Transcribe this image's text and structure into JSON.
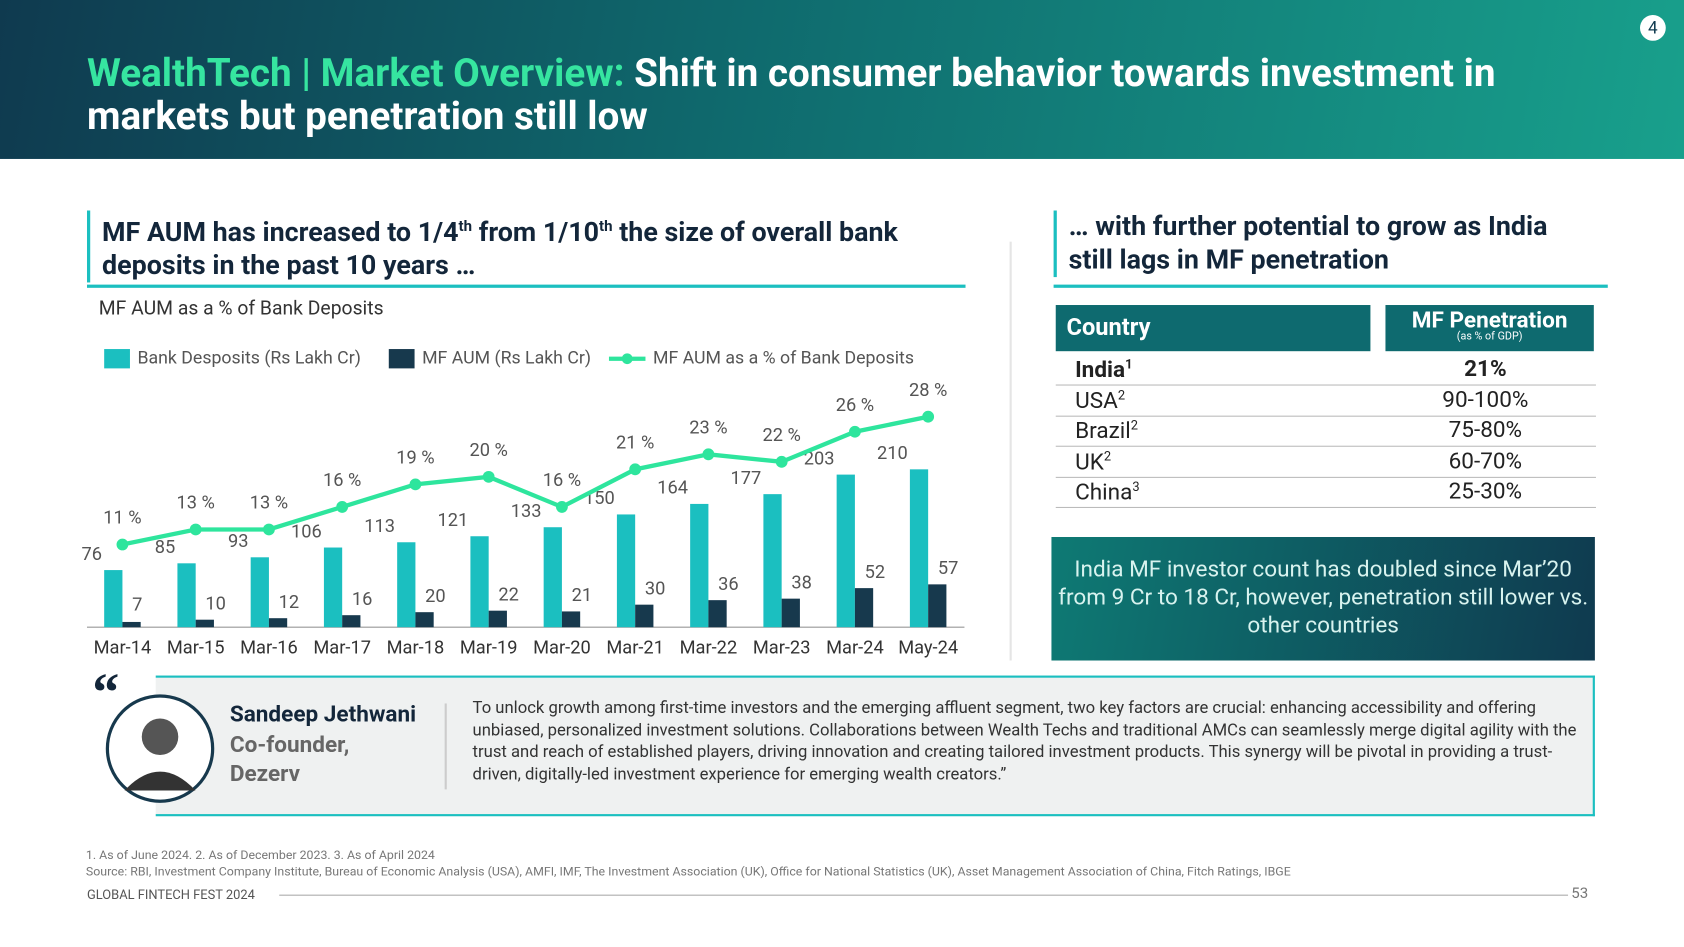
{
  "header": {
    "title_lead": "WealthTech | Market Overview:",
    "title_rest": "Shift in consumer behavior towards investment in markets but penetration still low",
    "page_badge": "4"
  },
  "left_heading": [
    "MF AUM has increased to 1/4",
    "th",
    " from 1/10",
    "th",
    " the size of overall bank deposits in the past 10 years …"
  ],
  "chart_data": {
    "type": "bar",
    "title": "MF AUM as a % of Bank Deposits",
    "categories": [
      "Mar-14",
      "Mar-15",
      "Mar-16",
      "Mar-17",
      "Mar-18",
      "Mar-19",
      "Mar-20",
      "Mar-21",
      "Mar-22",
      "Mar-23",
      "Mar-24",
      "May-24"
    ],
    "series": [
      {
        "name": "Bank Desposits (Rs Lakh Cr)",
        "color": "#1bbfc0",
        "values": [
          76,
          85,
          93,
          106,
          113,
          121,
          133,
          150,
          164,
          177,
          203,
          210
        ]
      },
      {
        "name": "MF AUM (Rs Lakh Cr)",
        "color": "#17394d",
        "values": [
          7,
          10,
          12,
          16,
          20,
          22,
          21,
          30,
          36,
          38,
          52,
          57
        ]
      },
      {
        "name": "MF AUM as a % of Bank Deposits",
        "color": "#2ee59d",
        "type": "line",
        "axis": "y2",
        "values": [
          11,
          13,
          13,
          16,
          19,
          20,
          16,
          21,
          23,
          22,
          26,
          28
        ],
        "value_labels": [
          "11 %",
          "13 %",
          "13 %",
          "16 %",
          "19 %",
          "20 %",
          "16 %",
          "21 %",
          "23 %",
          "22 %",
          "26 %",
          "28 %"
        ]
      }
    ],
    "ylim": [
      0,
      320
    ],
    "y2lim": [
      0,
      32
    ]
  },
  "right_heading": "… with further potential to grow as India still lags in MF penetration",
  "table": {
    "header": [
      "Country",
      "MF Penetration",
      "(as % of GDP)"
    ],
    "rows": [
      [
        "India",
        "1",
        "21%"
      ],
      [
        "USA",
        "2",
        "90-100%"
      ],
      [
        "Brazil",
        "2",
        "75-80%"
      ],
      [
        "UK",
        "2",
        "60-70%"
      ],
      [
        "China",
        "3",
        "25-30%"
      ]
    ]
  },
  "callout": "India MF investor count has doubled since Mar’20 from 9 Cr to 18 Cr, however, penetration still lower vs. other countries",
  "quote": {
    "mark": "“",
    "name": "Sandeep Jethwani",
    "role": "Co-founder, Dezerv",
    "text": "To unlock growth among first-time investors and the emerging affluent segment, two key factors are crucial: enhancing accessibility and offering unbiased, personalized investment solutions. Collaborations between Wealth Techs and traditional AMCs can seamlessly merge digital agility with the trust and reach of established players, driving innovation and creating tailored investment products. This synergy will be pivotal in providing a trust-driven, digitally-led investment experience for emerging wealth creators.”"
  },
  "footer": {
    "notes": "1. As of June 2024. 2. As of December 2023. 3. As of April 2024",
    "source": "Source: RBI, Investment Company Institute, Bureau of Economic Analysis (USA), AMFI, IMF, The Investment Association (UK), Office for National Statistics (UK), Asset Management Association of China, Fitch Ratings, IBGE",
    "event": "GLOBAL FINTECH FEST 2024",
    "page": "53"
  }
}
